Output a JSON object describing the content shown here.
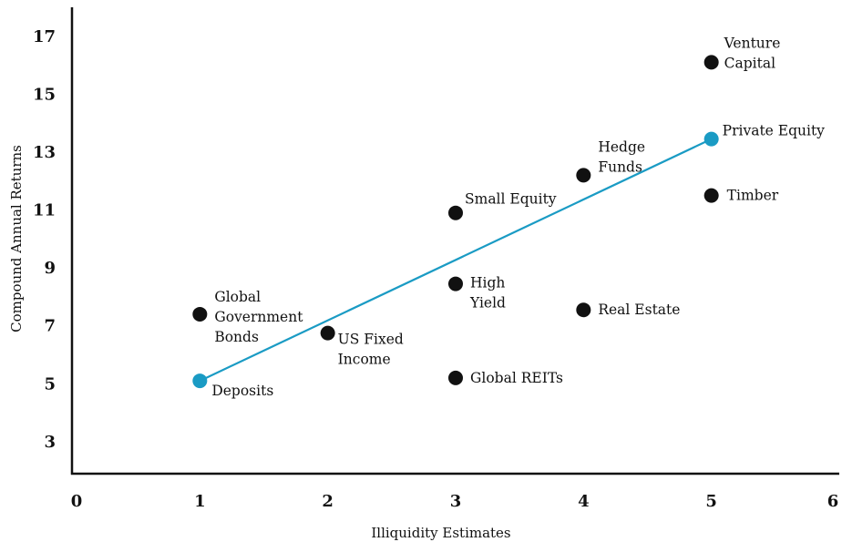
{
  "chart_data": {
    "type": "scatter",
    "title": "",
    "xlabel": "Illiquidity Estimates",
    "ylabel": "Compound Annual Returns",
    "xlim": [
      0,
      6
    ],
    "ylim": [
      1.9,
      18
    ],
    "x_ticks": [
      0,
      1,
      2,
      3,
      4,
      5,
      6
    ],
    "y_ticks": [
      3,
      5,
      7,
      9,
      11,
      13,
      15,
      17
    ],
    "grid": false,
    "legend": "none",
    "colors": {
      "point": "#111111",
      "highlight": "#1a9bc4",
      "trendline": "#1a9bc4",
      "axis": "#111111"
    },
    "points": [
      {
        "label": [
          "Global",
          "Government",
          "Bonds"
        ],
        "x": 1.0,
        "y": 7.4,
        "highlight": false
      },
      {
        "label": [
          "Deposits"
        ],
        "x": 1.0,
        "y": 5.1,
        "highlight": true
      },
      {
        "label": [
          "US Fixed",
          "Income"
        ],
        "x": 2.0,
        "y": 6.75,
        "highlight": false
      },
      {
        "label": [
          "Small Equity"
        ],
        "x": 3.0,
        "y": 10.9,
        "highlight": false
      },
      {
        "label": [
          "High",
          "Yield"
        ],
        "x": 3.0,
        "y": 8.45,
        "highlight": false
      },
      {
        "label": [
          "Global REITs"
        ],
        "x": 3.0,
        "y": 5.2,
        "highlight": false
      },
      {
        "label": [
          "Hedge",
          "Funds"
        ],
        "x": 4.0,
        "y": 12.2,
        "highlight": false
      },
      {
        "label": [
          "Real Estate"
        ],
        "x": 4.0,
        "y": 7.55,
        "highlight": false
      },
      {
        "label": [
          "Venture",
          "Capital"
        ],
        "x": 5.0,
        "y": 16.1,
        "highlight": false
      },
      {
        "label": [
          "Private Equity"
        ],
        "x": 5.0,
        "y": 13.45,
        "highlight": true
      },
      {
        "label": [
          "Timber"
        ],
        "x": 5.0,
        "y": 11.5,
        "highlight": false
      }
    ],
    "trendline": {
      "from": [
        1.0,
        5.1
      ],
      "to": [
        5.0,
        13.45
      ]
    }
  }
}
